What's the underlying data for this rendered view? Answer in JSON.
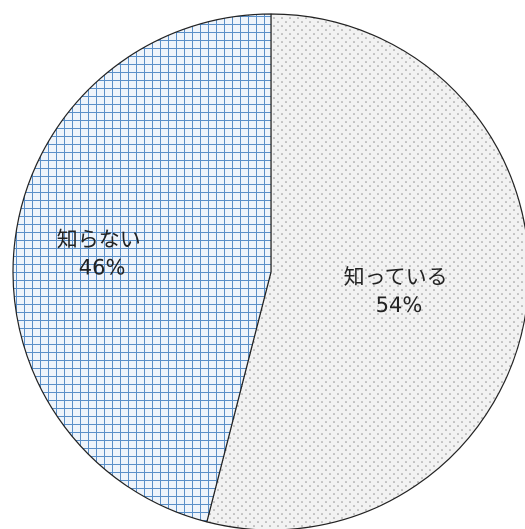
{
  "chart_data": {
    "type": "pie",
    "title": "",
    "slices": [
      {
        "label": "知っている",
        "value": 54,
        "display": "54%",
        "pattern": "dots",
        "fill_color": "#f2f2f2",
        "pattern_color": "#8f8f8f"
      },
      {
        "label": "知らない",
        "value": 46,
        "display": "46%",
        "pattern": "grid",
        "fill_color": "#eef4fb",
        "pattern_color": "#5a8fc8"
      }
    ],
    "start": "12 o'clock",
    "direction": "clockwise",
    "legend": "none",
    "edge_color": "#222222"
  }
}
